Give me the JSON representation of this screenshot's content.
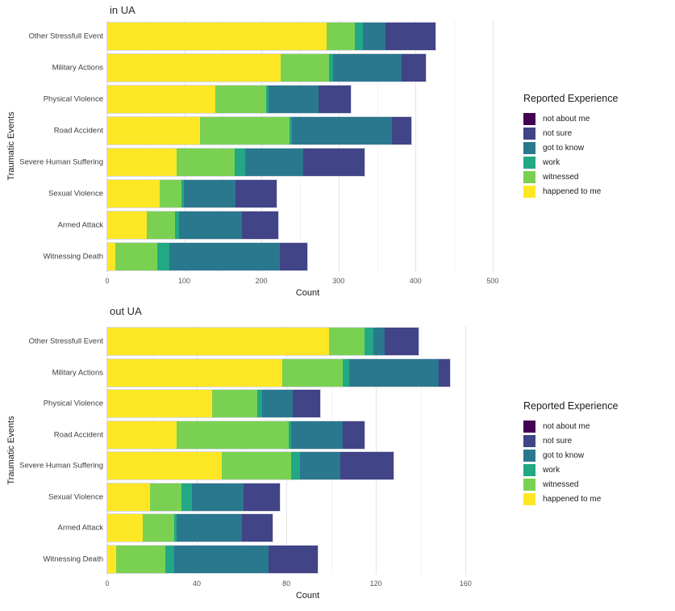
{
  "page": {
    "background": "#ffffff"
  },
  "legend": {
    "title": "Reported Experience",
    "items": [
      {
        "label": "not about me",
        "color": "#440154"
      },
      {
        "label": "not sure",
        "color": "#414487"
      },
      {
        "label": "got to know",
        "color": "#2a788e"
      },
      {
        "label": "work",
        "color": "#22a884"
      },
      {
        "label": "witnessed",
        "color": "#7ad151"
      },
      {
        "label": "happened to me",
        "color": "#fde725"
      }
    ]
  },
  "chart_data": [
    {
      "type": "bar",
      "variant": "horizontal-stacked",
      "title": "in UA",
      "xlabel": "Count",
      "ylabel": "Traumatic Events",
      "grid": true,
      "legend_position": "right",
      "xlim": [
        0,
        520
      ],
      "xticks": [
        0,
        100,
        200,
        300,
        400,
        500
      ],
      "categories": [
        "Other Stressfull Event",
        "Military Actions",
        "Physical Violence",
        "Road Accident",
        "Severe Human Suffering",
        "Sexual Violence",
        "Armed Attack",
        "Witnessing Death"
      ],
      "series": [
        {
          "name": "happened to me",
          "color": "#fde725",
          "values": [
            285,
            225,
            140,
            120,
            90,
            68,
            51,
            10
          ]
        },
        {
          "name": "witnessed",
          "color": "#7ad151",
          "values": [
            36,
            63,
            66,
            116,
            75,
            28,
            37,
            55
          ]
        },
        {
          "name": "work",
          "color": "#22a884",
          "values": [
            11,
            5,
            3,
            4,
            14,
            3,
            5,
            16
          ]
        },
        {
          "name": "got to know",
          "color": "#2a788e",
          "values": [
            29,
            89,
            65,
            129,
            75,
            67,
            82,
            143
          ]
        },
        {
          "name": "not sure",
          "color": "#414487",
          "values": [
            65,
            31,
            42,
            26,
            80,
            54,
            47,
            36
          ]
        },
        {
          "name": "not about me",
          "color": "#440154",
          "values": [
            0,
            0,
            0,
            0,
            0,
            0,
            0,
            0
          ]
        }
      ]
    },
    {
      "type": "bar",
      "variant": "horizontal-stacked",
      "title": "out UA",
      "xlabel": "Count",
      "ylabel": "Traumatic Events",
      "grid": true,
      "legend_position": "right",
      "xlim": [
        0,
        179
      ],
      "xticks": [
        0,
        40,
        80,
        120,
        160
      ],
      "categories": [
        "Other Stressfull Event",
        "Military Actions",
        "Physical Violence",
        "Road Accident",
        "Severe Human Suffering",
        "Sexual Violence",
        "Armed Attack",
        "Witnessing Death"
      ],
      "series": [
        {
          "name": "happened to me",
          "color": "#fde725",
          "values": [
            99,
            78,
            47,
            31,
            51,
            19,
            16,
            4
          ]
        },
        {
          "name": "witnessed",
          "color": "#7ad151",
          "values": [
            16,
            27,
            20,
            50,
            31,
            14,
            14,
            22
          ]
        },
        {
          "name": "work",
          "color": "#22a884",
          "values": [
            4,
            3,
            2,
            1,
            4,
            5,
            1,
            4
          ]
        },
        {
          "name": "got to know",
          "color": "#2a788e",
          "values": [
            5,
            40,
            14,
            23,
            18,
            23,
            29,
            42
          ]
        },
        {
          "name": "not sure",
          "color": "#414487",
          "values": [
            15,
            5,
            12,
            10,
            24,
            16,
            14,
            22
          ]
        },
        {
          "name": "not about me",
          "color": "#440154",
          "values": [
            0,
            0,
            0,
            0,
            0,
            0,
            0,
            0
          ]
        }
      ]
    }
  ]
}
